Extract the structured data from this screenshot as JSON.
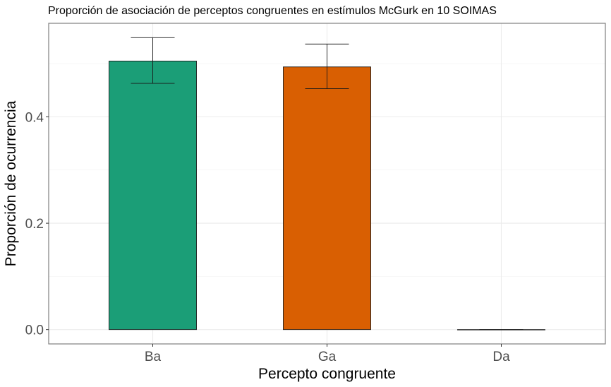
{
  "chart_data": {
    "type": "bar",
    "title": "Proporción de asociación de perceptos congruentes en estímulos McGurk en 10 SOIMAS",
    "xlabel": "Percepto congruente",
    "ylabel": "Proporción de ocurrencia",
    "categories": [
      "Ba",
      "Ga",
      "Da"
    ],
    "values": [
      0.505,
      0.494,
      0.0
    ],
    "error_low": [
      0.463,
      0.453,
      0.0
    ],
    "error_high": [
      0.549,
      0.537,
      0.0
    ],
    "colors": [
      "#1b9e77",
      "#d95f02",
      "#7570b3"
    ],
    "ylim": [
      -0.027,
      0.576
    ],
    "yticks": [
      0.0,
      0.2,
      0.4
    ],
    "ytick_labels": [
      "0.0",
      "0.2",
      "0.4"
    ],
    "grid": true,
    "legend": "none"
  }
}
